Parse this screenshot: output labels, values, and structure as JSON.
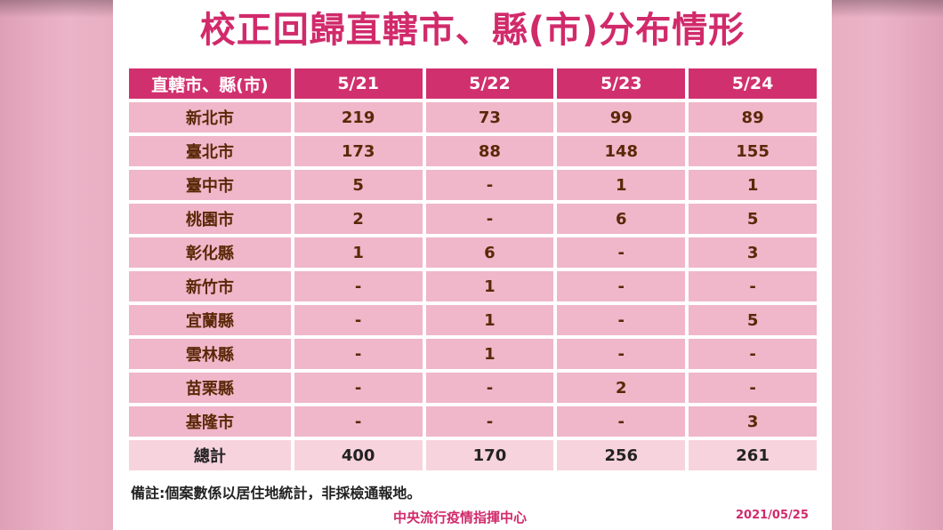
{
  "title": "校正回歸直轄市、縣(市)分布情形",
  "table": {
    "headers": [
      "直轄市、縣(市)",
      "5/21",
      "5/22",
      "5/23",
      "5/24"
    ],
    "rows": [
      [
        "新北市",
        "219",
        "73",
        "99",
        "89"
      ],
      [
        "臺北市",
        "173",
        "88",
        "148",
        "155"
      ],
      [
        "臺中市",
        "5",
        "-",
        "1",
        "1"
      ],
      [
        "桃園市",
        "2",
        "-",
        "6",
        "5"
      ],
      [
        "彰化縣",
        "1",
        "6",
        "-",
        "3"
      ],
      [
        "新竹市",
        "-",
        "1",
        "-",
        "-"
      ],
      [
        "宜蘭縣",
        "-",
        "1",
        "-",
        "5"
      ],
      [
        "雲林縣",
        "-",
        "1",
        "-",
        "-"
      ],
      [
        "苗栗縣",
        "-",
        "-",
        "2",
        "-"
      ],
      [
        "基隆市",
        "-",
        "-",
        "-",
        "3"
      ]
    ],
    "total": [
      "總計",
      "400",
      "170",
      "256",
      "261"
    ]
  },
  "note": "備註:個案數係以居住地統計，非採檢通報地。",
  "footer": {
    "source": "中央流行疫情指揮中心",
    "date": "2021/05/25"
  },
  "colors": {
    "title": "#d12a6b",
    "header_bg": "#d1306e",
    "cell_bg": "#f0b6c9",
    "total_bg": "#f7d3de",
    "cell_text": "#5a2808",
    "background": "#eab0c4"
  }
}
